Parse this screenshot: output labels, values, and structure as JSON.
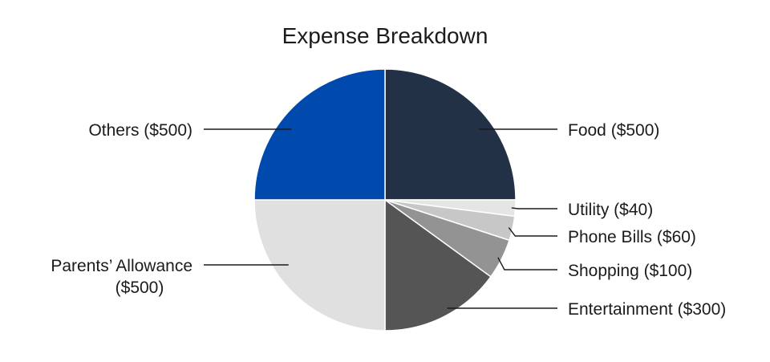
{
  "chart_data": {
    "type": "pie",
    "title": "Expense Breakdown",
    "slices": [
      {
        "label": "Food ($500)",
        "label_lines": [
          "Food ($500)"
        ],
        "value": 500,
        "color": "#233147",
        "label_side": "right"
      },
      {
        "label": "Utility ($40)",
        "label_lines": [
          "Utility ($40)"
        ],
        "value": 40,
        "color": "#e5e5e5",
        "label_side": "right"
      },
      {
        "label": "Phone Bills ($60)",
        "label_lines": [
          "Phone Bills ($60)"
        ],
        "value": 60,
        "color": "#c7c7c7",
        "label_side": "right"
      },
      {
        "label": "Shopping ($100)",
        "label_lines": [
          "Shopping ($100)"
        ],
        "value": 100,
        "color": "#939393",
        "label_side": "right"
      },
      {
        "label": "Entertainment ($300)",
        "label_lines": [
          "Entertainment ($300)"
        ],
        "value": 300,
        "color": "#555555",
        "label_side": "right"
      },
      {
        "label": "Parents’ Allowance ($500)",
        "label_lines": [
          "Parents’ Allowance",
          "($500)"
        ],
        "value": 500,
        "color": "#e0e0e0",
        "label_side": "left"
      },
      {
        "label": "Others ($500)",
        "label_lines": [
          "Others ($500)"
        ],
        "value": 500,
        "color": "#004aad",
        "label_side": "left"
      }
    ],
    "legend": "none"
  }
}
